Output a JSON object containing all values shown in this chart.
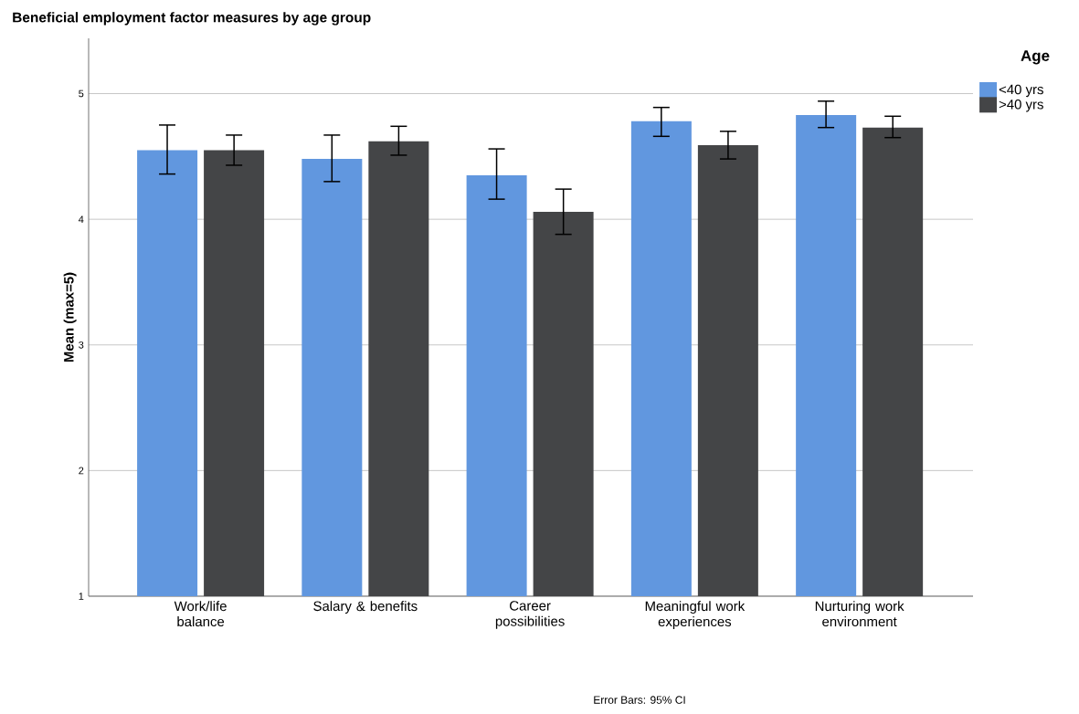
{
  "chart_data": {
    "type": "bar",
    "title": "Beneficial employment factor measures by age group",
    "categories": [
      "Work/life balance",
      "Salary & benefits",
      "Career possibilities",
      "Meaningful work experiences",
      "Nurturing work environment"
    ],
    "ylabel": "Mean (max=5)",
    "legend_title": "Age",
    "legend": "top right",
    "grid": "y",
    "ylim": [
      1,
      5.44
    ],
    "yticks": [
      1,
      2,
      3,
      4,
      5
    ],
    "series": [
      {
        "name": "<40 yrs",
        "color": "#6197df",
        "values": [
          4.55,
          4.48,
          4.35,
          4.78,
          4.83
        ],
        "errors": [
          [
            4.36,
            4.75
          ],
          [
            4.3,
            4.67
          ],
          [
            4.16,
            4.56
          ],
          [
            4.66,
            4.89
          ],
          [
            4.73,
            4.94
          ]
        ]
      },
      {
        "name": ">40 yrs",
        "color": "#444547",
        "values": [
          4.55,
          4.62,
          4.06,
          4.59,
          4.73
        ],
        "errors": [
          [
            4.43,
            4.67
          ],
          [
            4.51,
            4.74
          ],
          [
            3.88,
            4.24
          ],
          [
            4.48,
            4.7
          ],
          [
            4.65,
            4.82
          ]
        ]
      }
    ],
    "annotations": [
      "Error Bars: 95% CI"
    ]
  }
}
